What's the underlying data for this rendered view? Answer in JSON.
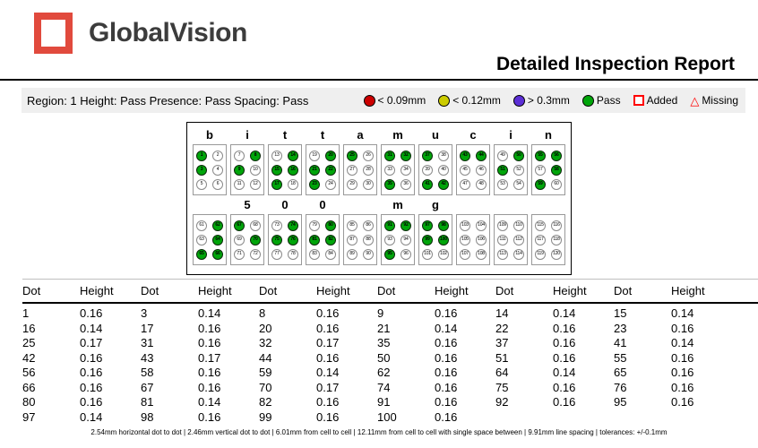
{
  "header": {
    "logo_text": "GlobalVision",
    "title": "Detailed Inspection Report"
  },
  "region_bar": {
    "summary": "Region: 1 Height: Pass Presence: Pass Spacing: Pass",
    "legend": [
      {
        "shape": "circle",
        "icon": "red-circle-icon",
        "color": "#cc0000",
        "label": "< 0.09mm"
      },
      {
        "shape": "circle",
        "icon": "yellow-circle-icon",
        "color": "#cccc00",
        "label": "< 0.12mm"
      },
      {
        "shape": "circle",
        "icon": "purple-circle-icon",
        "color": "#5c2fd6",
        "label": "> 0.3mm"
      },
      {
        "shape": "circle",
        "icon": "green-circle-icon",
        "color": "#00a50a",
        "label": "Pass"
      },
      {
        "shape": "square",
        "icon": "added-square-icon",
        "color": "#ff0000",
        "label": "Added"
      },
      {
        "shape": "triangle",
        "icon": "missing-triangle-icon",
        "color": "#ff0000",
        "label": "Missing"
      }
    ]
  },
  "braille": {
    "rows": [
      {
        "cells": [
          {
            "label": "b",
            "start": 1,
            "raised": [
              1,
              3
            ]
          },
          {
            "label": "i",
            "start": 7,
            "raised": [
              8,
              9
            ]
          },
          {
            "label": "t",
            "start": 13,
            "raised": [
              14,
              15,
              16,
              17
            ]
          },
          {
            "label": "t",
            "start": 19,
            "raised": [
              20,
              21,
              22,
              23
            ]
          },
          {
            "label": "a",
            "start": 25,
            "raised": [
              25
            ]
          },
          {
            "label": "m",
            "start": 31,
            "raised": [
              31,
              32,
              35
            ]
          },
          {
            "label": "u",
            "start": 37,
            "raised": [
              37,
              41,
              42
            ]
          },
          {
            "label": "c",
            "start": 43,
            "raised": [
              43,
              44
            ]
          },
          {
            "label": "i",
            "start": 49,
            "raised": [
              50,
              51
            ]
          },
          {
            "label": "n",
            "start": 55,
            "raised": [
              55,
              56,
              58,
              59
            ]
          }
        ]
      },
      {
        "cells": [
          {
            "label": "",
            "start": 61,
            "raised": [
              62,
              64,
              65,
              66
            ]
          },
          {
            "label": "5",
            "start": 67,
            "raised": [
              67,
              70
            ]
          },
          {
            "label": "0",
            "start": 73,
            "raised": [
              74,
              75,
              76
            ]
          },
          {
            "label": "0",
            "start": 79,
            "raised": [
              80,
              81,
              82
            ]
          },
          {
            "label": "",
            "start": 85,
            "raised": []
          },
          {
            "label": "m",
            "start": 91,
            "raised": [
              91,
              92,
              95
            ]
          },
          {
            "label": "g",
            "start": 97,
            "raised": [
              97,
              98,
              99,
              100
            ]
          },
          {
            "label": "",
            "start": 103,
            "raised": []
          },
          {
            "label": "",
            "start": 109,
            "raised": []
          },
          {
            "label": "",
            "start": 115,
            "raised": []
          }
        ]
      }
    ]
  },
  "table": {
    "header_pair": [
      "Dot",
      "Height"
    ],
    "pairs_per_row": 6,
    "rows": [
      [
        [
          "1",
          "0.16"
        ],
        [
          "3",
          "0.14"
        ],
        [
          "8",
          "0.16"
        ],
        [
          "9",
          "0.16"
        ],
        [
          "14",
          "0.14"
        ],
        [
          "15",
          "0.14"
        ]
      ],
      [
        [
          "16",
          "0.14"
        ],
        [
          "17",
          "0.16"
        ],
        [
          "20",
          "0.16"
        ],
        [
          "21",
          "0.14"
        ],
        [
          "22",
          "0.16"
        ],
        [
          "23",
          "0.16"
        ]
      ],
      [
        [
          "25",
          "0.17"
        ],
        [
          "31",
          "0.16"
        ],
        [
          "32",
          "0.17"
        ],
        [
          "35",
          "0.16"
        ],
        [
          "37",
          "0.16"
        ],
        [
          "41",
          "0.14"
        ]
      ],
      [
        [
          "42",
          "0.16"
        ],
        [
          "43",
          "0.17"
        ],
        [
          "44",
          "0.16"
        ],
        [
          "50",
          "0.16"
        ],
        [
          "51",
          "0.16"
        ],
        [
          "55",
          "0.16"
        ]
      ],
      [
        [
          "56",
          "0.16"
        ],
        [
          "58",
          "0.16"
        ],
        [
          "59",
          "0.14"
        ],
        [
          "62",
          "0.16"
        ],
        [
          "64",
          "0.14"
        ],
        [
          "65",
          "0.16"
        ]
      ],
      [
        [
          "66",
          "0.16"
        ],
        [
          "67",
          "0.16"
        ],
        [
          "70",
          "0.17"
        ],
        [
          "74",
          "0.16"
        ],
        [
          "75",
          "0.16"
        ],
        [
          "76",
          "0.16"
        ]
      ],
      [
        [
          "80",
          "0.16"
        ],
        [
          "81",
          "0.14"
        ],
        [
          "82",
          "0.16"
        ],
        [
          "91",
          "0.16"
        ],
        [
          "92",
          "0.16"
        ],
        [
          "95",
          "0.16"
        ]
      ],
      [
        [
          "97",
          "0.14"
        ],
        [
          "98",
          "0.16"
        ],
        [
          "99",
          "0.16"
        ],
        [
          "100",
          "0.16"
        ]
      ]
    ]
  },
  "footer": {
    "specs": "2.54mm horizontal dot to dot | 2.46mm vertical dot to dot | 6.01mm from cell to cell | 12.11mm from cell to cell with single space between | 9.91mm line spacing | tolerances: +/-0.1mm"
  }
}
